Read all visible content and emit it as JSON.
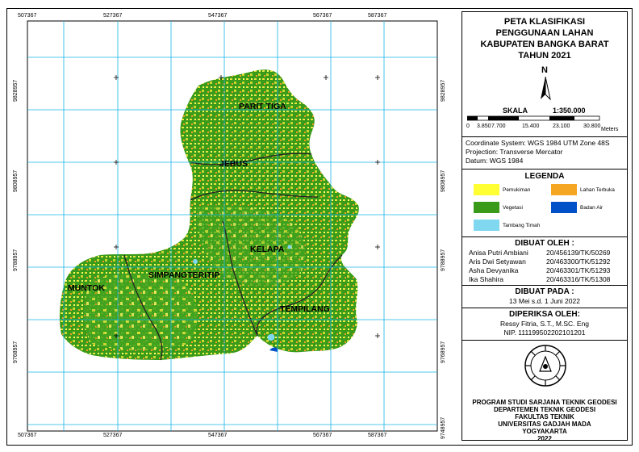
{
  "title": [
    "PETA KLASIFIKASI",
    "PENGGUNAAN LAHAN",
    "KABUPATEN BANGKA BARAT",
    "TAHUN 2021"
  ],
  "north_label": "N",
  "scale": {
    "label": "SKALA",
    "ratio": "1:350.000",
    "ticks": [
      "0",
      "3.850",
      "7.700",
      "15.400",
      "23.100",
      "30.800"
    ],
    "unit": "Meters"
  },
  "projection": [
    "Coordinate System: WGS 1984 UTM Zone 48S",
    "Projection: Transverse Mercator",
    "Datum: WGS 1984"
  ],
  "legend": {
    "title": "LEGENDA",
    "items": [
      {
        "label": "Pemukiman",
        "color": "#ffff33"
      },
      {
        "label": "Lahan Terbuka",
        "color": "#f5a623"
      },
      {
        "label": "Vegetasi",
        "color": "#3a9a1a"
      },
      {
        "label": "Badan Air",
        "color": "#0050c8"
      },
      {
        "label": "Tambang Timah",
        "color": "#7fd8f0"
      }
    ]
  },
  "dibuat_oleh": {
    "title": "DIBUAT OLEH :",
    "people": [
      {
        "name": "Anisa Putri Ambiani",
        "nim": "20/456139/TK/50269"
      },
      {
        "name": "Aris Dwi Setyawan",
        "nim": "20/463300/TK/51292"
      },
      {
        "name": "Asha Devyanika",
        "nim": "20/463301/TK/51293"
      },
      {
        "name": "Ika Shahira",
        "nim": "20/463316/TK/51308"
      }
    ]
  },
  "dibuat_pada": {
    "title": "DIBUAT PADA :",
    "value": "13 Mei s.d. 1 Juni 2022"
  },
  "diperiksa": {
    "title": "DIPERIKSA OLEH:",
    "name": "Ressy Fitria, S.T., M.SC. Eng",
    "nip": "NIP. 111199502202101201"
  },
  "institution": [
    "PROGRAM STUDI SARJANA TEKNIK GEODESI",
    "DEPARTEMEN TEKNIK GEODESI",
    "FAKULTAS TEKNIK",
    "UNIVERSITAS GADJAH MADA",
    "YOGYAKARTA",
    "2022"
  ],
  "map": {
    "x_ticks": [
      "507367",
      "527367",
      "547367",
      "567367",
      "587367"
    ],
    "y_ticks": [
      "9828957",
      "9808957",
      "9788957",
      "9768957",
      "9748957"
    ],
    "regions": [
      "PARIT TIGA",
      "JEBUS",
      "KELAPA",
      "SIMPANGTERITIP",
      "MUNTOK",
      "TEMPILANG"
    ]
  }
}
